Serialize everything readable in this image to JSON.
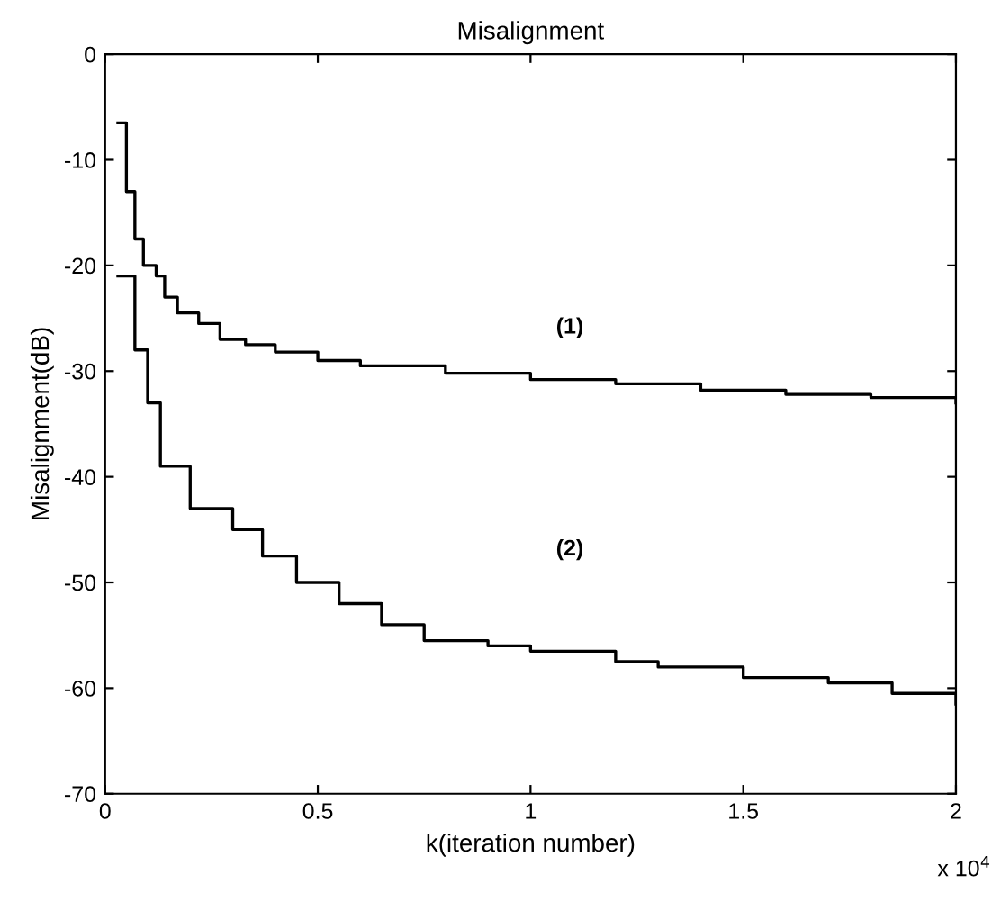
{
  "chart_data": {
    "type": "step",
    "title": "Misalignment",
    "xlabel": "k(iteration number)",
    "ylabel": "Misalignment(dB)",
    "xlim": [
      0,
      2
    ],
    "ylim": [
      -70,
      0
    ],
    "xticks": [
      0,
      0.5,
      1,
      1.5,
      2
    ],
    "yticks": [
      -70,
      -60,
      -50,
      -40,
      -30,
      -20,
      -10,
      0
    ],
    "series": [
      {
        "color": "#000000",
        "x": [
          0.03,
          0.05,
          0.07,
          0.09,
          0.12,
          0.14,
          0.17,
          0.22,
          0.27,
          0.33,
          0.4,
          0.5,
          0.6,
          0.8,
          1.0,
          1.2,
          1.4,
          1.6,
          1.8,
          2.0
        ],
        "values": [
          -6.5,
          -13,
          -17.5,
          -20,
          -21,
          -23,
          -24.5,
          -25.5,
          -27,
          -27.5,
          -28.2,
          -29,
          -29.5,
          -30.2,
          -30.8,
          -31.2,
          -31.8,
          -32.2,
          -32.5,
          -33
        ]
      },
      {
        "color": "#000000",
        "x": [
          0.03,
          0.07,
          0.1,
          0.13,
          0.2,
          0.3,
          0.37,
          0.45,
          0.55,
          0.65,
          0.75,
          0.9,
          1.0,
          1.2,
          1.3,
          1.5,
          1.7,
          1.85,
          2.0
        ],
        "values": [
          -21,
          -28,
          -33,
          -39,
          -43,
          -45,
          -47.5,
          -50,
          -52,
          -54,
          -55.5,
          -56,
          -56.5,
          -57.5,
          -58,
          -59,
          -59.5,
          -60.5,
          -61.5
        ]
      }
    ],
    "annotations": [
      "(1)",
      "(2)",
      "x 10$^{4}$"
    ],
    "grid": false,
    "legend": false,
    "line_style": "solid"
  }
}
